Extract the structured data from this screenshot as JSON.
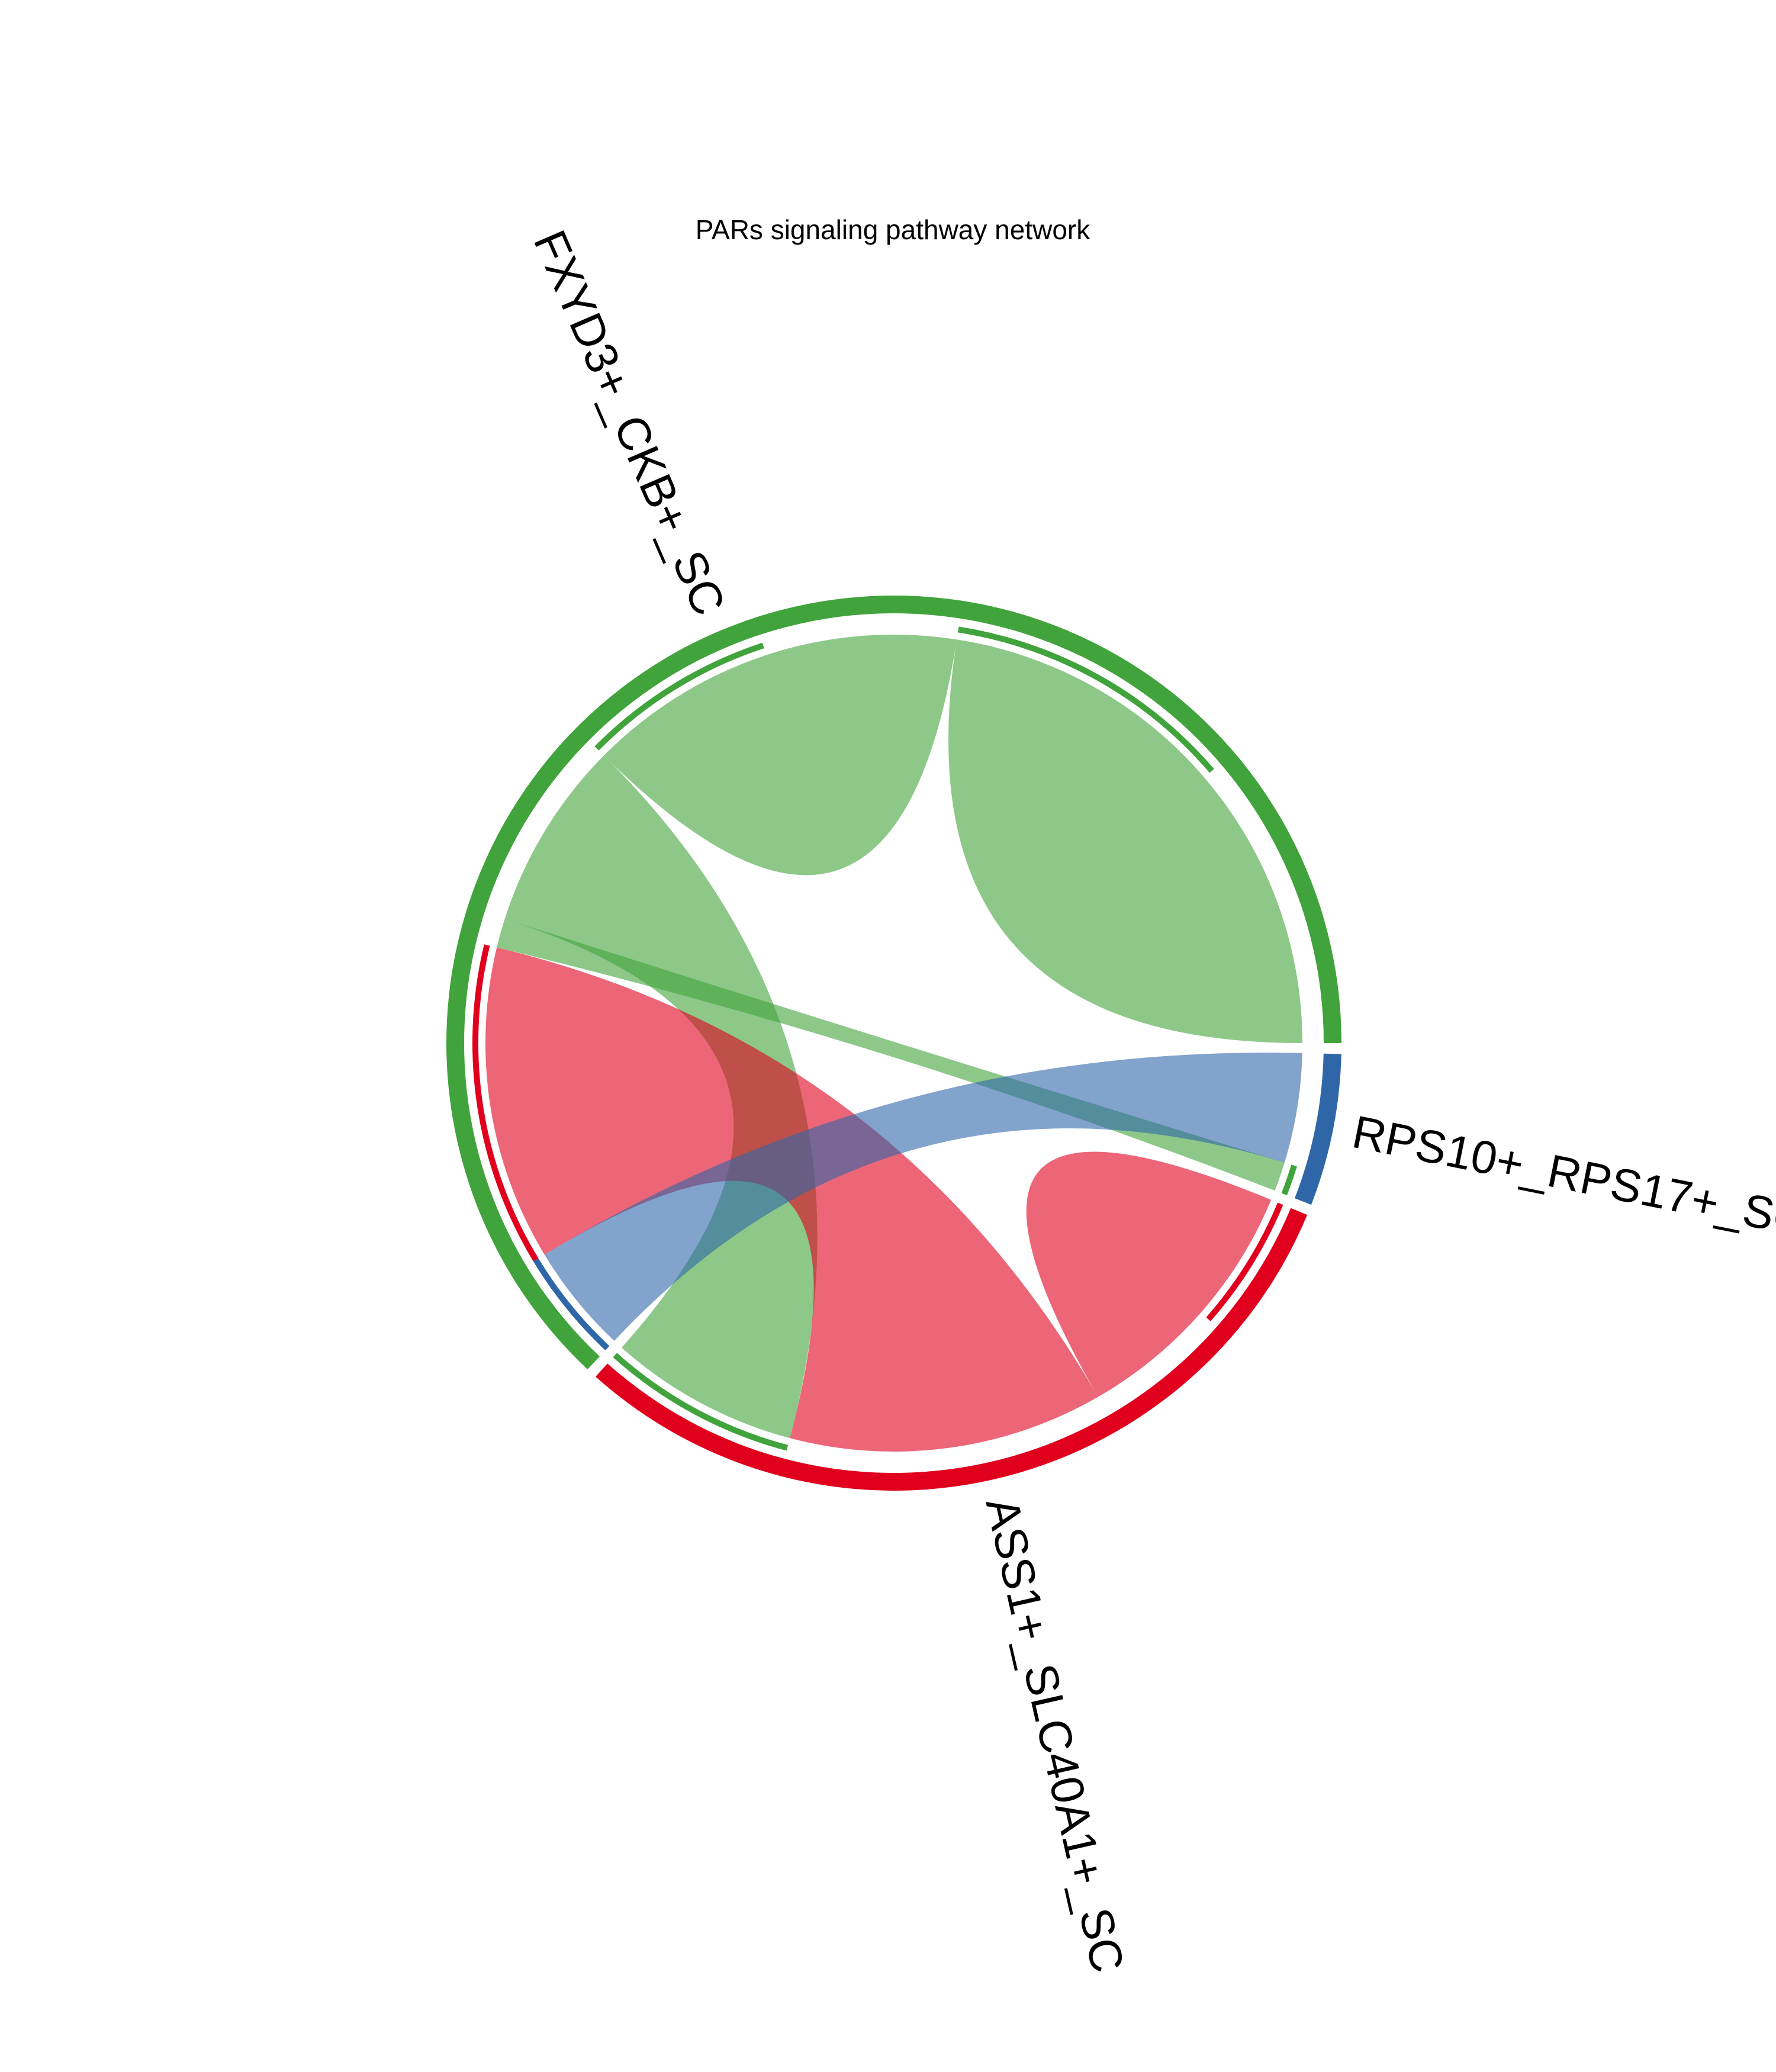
{
  "chart_data": {
    "type": "chord",
    "title": "PARs signaling pathway network",
    "sectors": [
      {
        "name": "FXYD3+_CKB+_SC",
        "color": "#41A33B"
      },
      {
        "name": "ASS1+_SLC40A1+_SC",
        "color": "#E0001E"
      },
      {
        "name": "RPS10+_RPS17+_SC",
        "color": "#2E66A8"
      }
    ],
    "links": [
      {
        "source": "FXYD3+_CKB+_SC",
        "target": "FXYD3+_CKB+_SC",
        "value": 0.39
      },
      {
        "source": "FXYD3+_CKB+_SC",
        "target": "FXYD3+_CKB+_SC",
        "value": 0.26
      },
      {
        "source": "FXYD3+_CKB+_SC",
        "target": "ASS1+_SLC40A1+_SC",
        "value": 0.26
      },
      {
        "source": "FXYD3+_CKB+_SC",
        "target": "RPS10+_RPS17+_SC",
        "value": 0.04
      },
      {
        "source": "ASS1+_SLC40A1+_SC",
        "target": "FXYD3+_CKB+_SC",
        "value": 0.43
      },
      {
        "source": "ASS1+_SLC40A1+_SC",
        "target": "ASS1+_SLC40A1+_SC",
        "value": 0.18
      },
      {
        "source": "RPS10+_RPS17+_SC",
        "target": "FXYD3+_CKB+_SC",
        "value": 0.15
      }
    ]
  }
}
